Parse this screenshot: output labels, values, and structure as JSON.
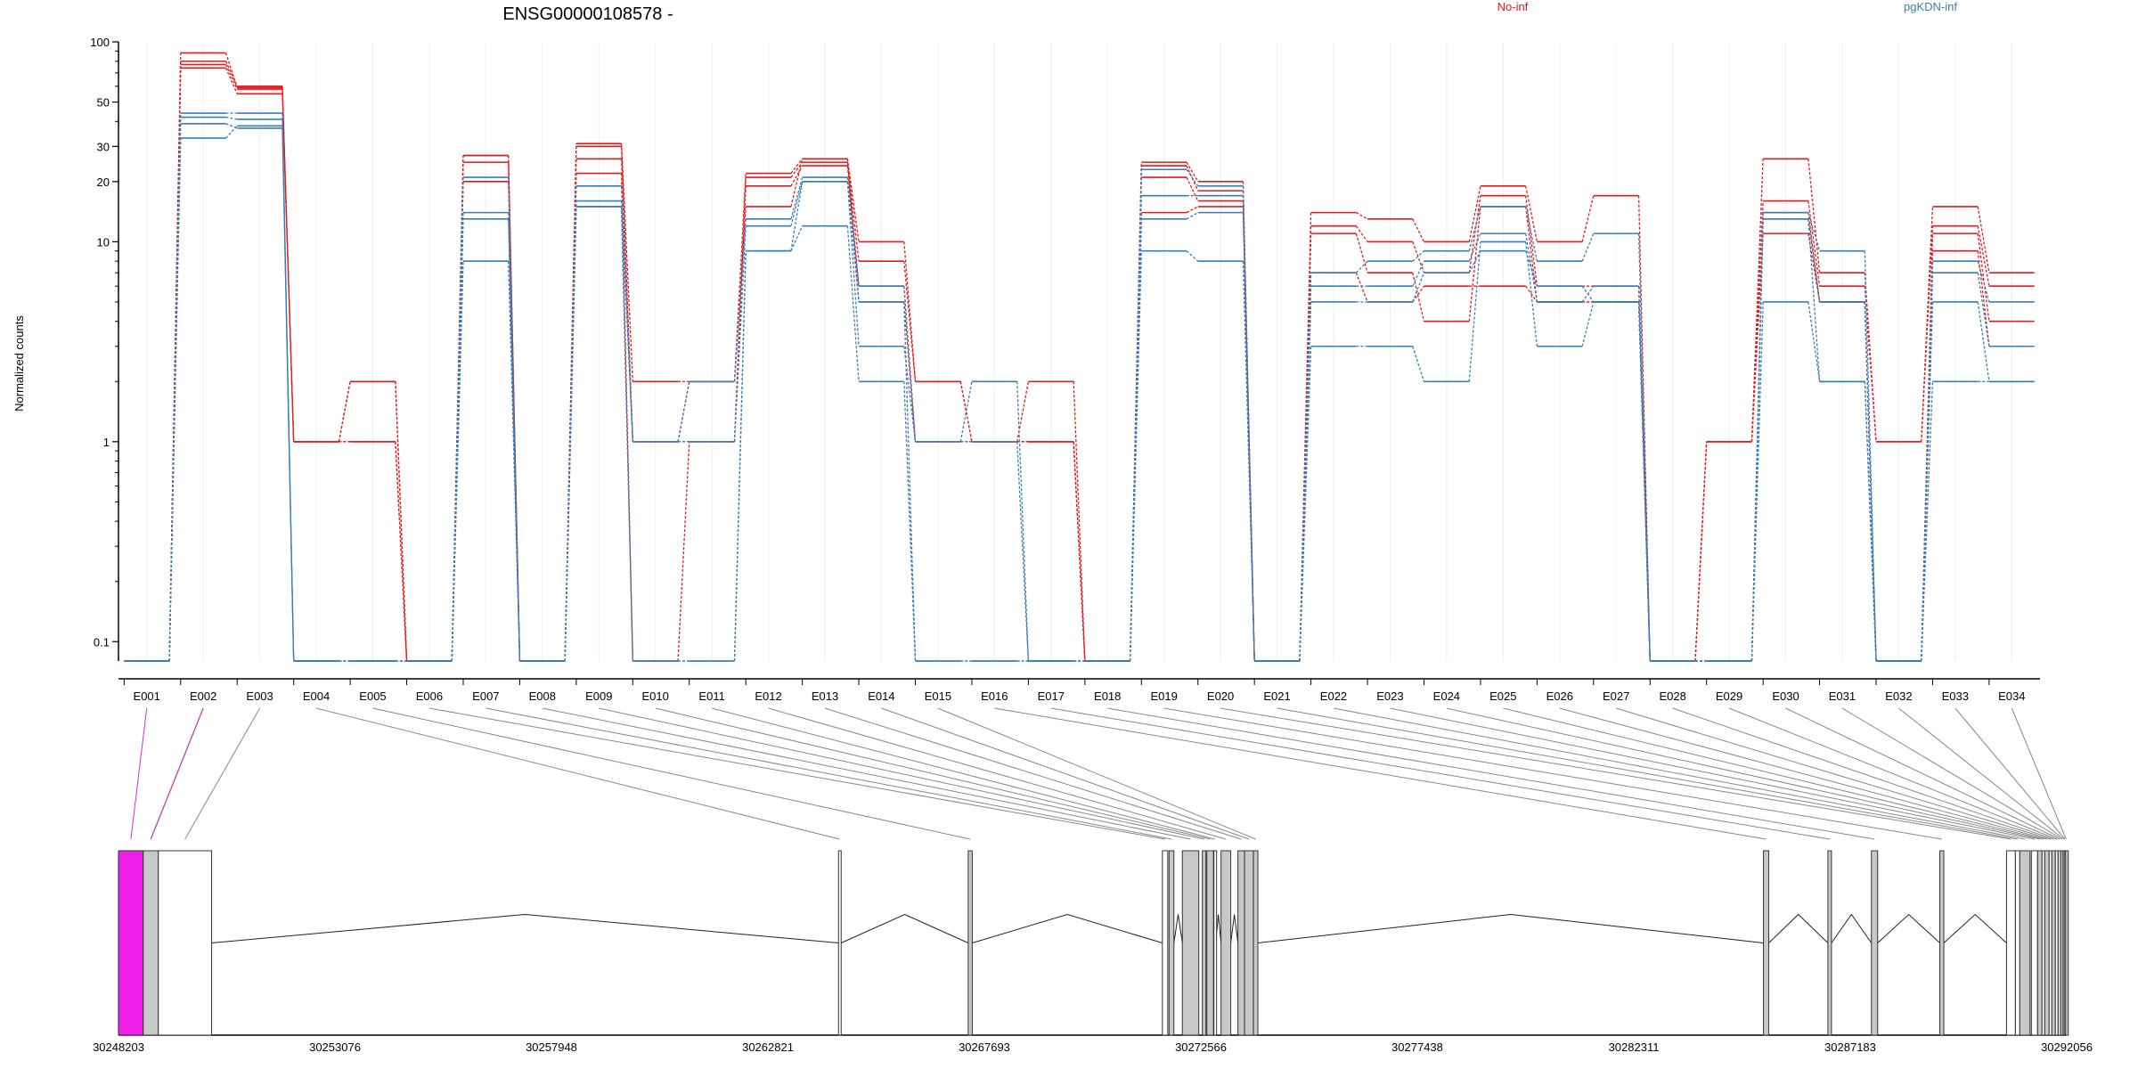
{
  "title": "ENSG00000108578 -",
  "ylabel": "Normalized counts",
  "legend": [
    {
      "name": "No-inf",
      "color": "#e41a1c"
    },
    {
      "name": "pgKDN-inf",
      "color": "#377eb8"
    }
  ],
  "chart_data": {
    "type": "line",
    "title": "ENSG00000108578 -",
    "xlabel": "",
    "ylabel": "Normalized counts",
    "y_scale": "log",
    "ylim": [
      0.08,
      100
    ],
    "y_ticks": [
      0.1,
      1,
      10,
      20,
      30,
      50,
      100
    ],
    "y_tick_labels": [
      "0.1",
      "1",
      "10",
      "20",
      "30",
      "50",
      "100"
    ],
    "grid": "vertical",
    "legend_position": "top",
    "categories": [
      "E001",
      "E002",
      "E003",
      "E004",
      "E005",
      "E006",
      "E007",
      "E008",
      "E009",
      "E010",
      "E011",
      "E012",
      "E013",
      "E014",
      "E015",
      "E016",
      "E017",
      "E018",
      "E019",
      "E020",
      "E021",
      "E022",
      "E023",
      "E024",
      "E025",
      "E026",
      "E027",
      "E028",
      "E029",
      "E030",
      "E031",
      "E032",
      "E033",
      "E034"
    ],
    "zero_floor": 0.08,
    "series": [
      {
        "group": "No-inf",
        "color": "#e41a1c",
        "values": [
          0,
          80,
          60,
          1,
          2,
          0,
          27,
          0,
          31,
          2,
          2,
          22,
          26,
          10,
          2,
          1,
          2,
          0,
          25,
          20,
          0,
          14,
          13,
          10,
          19,
          10,
          17,
          0,
          1,
          26,
          7,
          1,
          15,
          7
        ]
      },
      {
        "group": "No-inf",
        "color": "#e41a1c",
        "values": [
          0,
          77,
          58,
          1,
          1,
          0,
          25,
          0,
          26,
          1,
          1,
          21,
          25,
          8,
          2,
          1,
          1,
          0,
          24,
          18,
          0,
          12,
          10,
          7,
          17,
          6,
          6,
          0,
          1,
          16,
          6,
          1,
          12,
          6
        ]
      },
      {
        "group": "No-inf",
        "color": "#e41a1c",
        "values": [
          0,
          74,
          55,
          1,
          1,
          0,
          20,
          0,
          22,
          0,
          1,
          19,
          24,
          6,
          1,
          1,
          1,
          0,
          21,
          16,
          0,
          11,
          7,
          4,
          15,
          5,
          5,
          0,
          0,
          14,
          5,
          0,
          11,
          4
        ]
      },
      {
        "group": "No-inf",
        "color": "#e41a1c",
        "values": [
          0,
          88,
          59,
          1,
          2,
          0,
          27,
          0,
          30,
          1,
          2,
          15,
          26,
          5,
          1,
          1,
          1,
          0,
          14,
          15,
          0,
          7,
          5,
          6,
          6,
          5,
          5,
          0,
          1,
          11,
          5,
          0,
          9,
          3
        ]
      },
      {
        "group": "pgKDN-inf",
        "color": "#377eb8",
        "values": [
          0,
          44,
          44,
          0,
          0,
          0,
          21,
          0,
          19,
          1,
          2,
          13,
          21,
          6,
          1,
          2,
          0,
          0,
          23,
          19,
          0,
          7,
          8,
          9,
          15,
          8,
          11,
          0,
          0,
          14,
          9,
          0,
          8,
          5
        ]
      },
      {
        "group": "pgKDN-inf",
        "color": "#377eb8",
        "values": [
          0,
          42,
          41,
          0,
          0,
          0,
          14,
          0,
          16,
          1,
          1,
          12,
          20,
          3,
          1,
          1,
          0,
          0,
          17,
          17,
          0,
          6,
          6,
          8,
          11,
          5,
          6,
          0,
          0,
          13,
          5,
          0,
          7,
          3
        ]
      },
      {
        "group": "pgKDN-inf",
        "color": "#377eb8",
        "values": [
          0,
          39,
          37,
          0,
          0,
          0,
          8,
          0,
          15,
          0,
          0,
          9,
          12,
          2,
          0,
          0,
          0,
          0,
          13,
          14,
          0,
          3,
          3,
          2,
          10,
          3,
          5,
          0,
          0,
          5,
          2,
          0,
          5,
          2
        ]
      },
      {
        "group": "pgKDN-inf",
        "color": "#377eb8",
        "values": [
          0,
          33,
          38,
          0,
          0,
          0,
          13,
          0,
          15,
          0,
          0,
          9,
          20,
          5,
          0,
          0,
          0,
          0,
          9,
          8,
          0,
          5,
          5,
          7,
          9,
          6,
          5,
          0,
          0,
          13,
          2,
          0,
          2,
          2
        ]
      }
    ],
    "gene_model": {
      "coordinate_ticks": [
        30248203,
        30253076,
        30257948,
        30262821,
        30267693,
        30272566,
        30277438,
        30282311,
        30287183,
        30292056
      ],
      "tick_labels": [
        "30248203",
        "30253076",
        "30257948",
        "30262821",
        "30267693",
        "30272566",
        "30277438",
        "30282311",
        "30287183",
        "30292056"
      ],
      "range": [
        30248203,
        30292056
      ],
      "exons": [
        {
          "id": "E001",
          "start": 30248203,
          "end": 30248760,
          "style": "highlight"
        },
        {
          "id": "E002",
          "start": 30248760,
          "end": 30249100,
          "style": "gray"
        },
        {
          "id": "E003",
          "start": 30249100,
          "end": 30250300,
          "style": "white"
        },
        {
          "id": "E004",
          "start": 30264410,
          "end": 30264470,
          "style": "white"
        },
        {
          "id": "E005",
          "start": 30267330,
          "end": 30267420,
          "style": "gray"
        },
        {
          "id": "E006",
          "start": 30271700,
          "end": 30271820,
          "style": "white"
        },
        {
          "id": "E007",
          "start": 30271850,
          "end": 30271960,
          "style": "gray"
        },
        {
          "id": "E008",
          "start": 30272150,
          "end": 30272520,
          "style": "gray"
        },
        {
          "id": "E009",
          "start": 30272600,
          "end": 30272680,
          "style": "gray"
        },
        {
          "id": "E010",
          "start": 30272700,
          "end": 30272850,
          "style": "gray"
        },
        {
          "id": "E011",
          "start": 30272860,
          "end": 30272900,
          "style": "white"
        },
        {
          "id": "E012",
          "start": 30273020,
          "end": 30273240,
          "style": "gray"
        },
        {
          "id": "E013",
          "start": 30273400,
          "end": 30273550,
          "style": "gray"
        },
        {
          "id": "E014",
          "start": 30273550,
          "end": 30273750,
          "style": "gray"
        },
        {
          "id": "E015",
          "start": 30273750,
          "end": 30273850,
          "style": "gray"
        },
        {
          "id": "E016",
          "start": 30285230,
          "end": 30285350,
          "style": "gray"
        },
        {
          "id": "E017",
          "start": 30286680,
          "end": 30286760,
          "style": "gray"
        },
        {
          "id": "E018",
          "start": 30287660,
          "end": 30287800,
          "style": "gray"
        },
        {
          "id": "E019",
          "start": 30289200,
          "end": 30289290,
          "style": "gray"
        },
        {
          "id": "E020",
          "start": 30290700,
          "end": 30290900,
          "style": "white"
        },
        {
          "id": "E021",
          "start": 30290900,
          "end": 30291000,
          "style": "white"
        },
        {
          "id": "E022",
          "start": 30291000,
          "end": 30291230,
          "style": "gray"
        },
        {
          "id": "E023",
          "start": 30291260,
          "end": 30291400,
          "style": "white"
        },
        {
          "id": "E024",
          "start": 30291400,
          "end": 30291500,
          "style": "gray"
        },
        {
          "id": "E025",
          "start": 30291500,
          "end": 30291560,
          "style": "white"
        },
        {
          "id": "E026",
          "start": 30291560,
          "end": 30291660,
          "style": "gray"
        },
        {
          "id": "E027",
          "start": 30291660,
          "end": 30291720,
          "style": "white"
        },
        {
          "id": "E028",
          "start": 30291720,
          "end": 30291800,
          "style": "gray"
        },
        {
          "id": "E029",
          "start": 30291800,
          "end": 30291860,
          "style": "white"
        },
        {
          "id": "E030",
          "start": 30291860,
          "end": 30291930,
          "style": "gray"
        },
        {
          "id": "E031",
          "start": 30291930,
          "end": 30291970,
          "style": "white"
        },
        {
          "id": "E032",
          "start": 30291970,
          "end": 30292000,
          "style": "gray"
        },
        {
          "id": "E033",
          "start": 30292000,
          "end": 30292030,
          "style": "gray"
        },
        {
          "id": "E034",
          "start": 30292030,
          "end": 30292056,
          "style": "gray"
        }
      ],
      "colors": {
        "highlight": "#ee1fe6",
        "gray": "#c8c8c8",
        "white": "#ffffff"
      }
    }
  }
}
